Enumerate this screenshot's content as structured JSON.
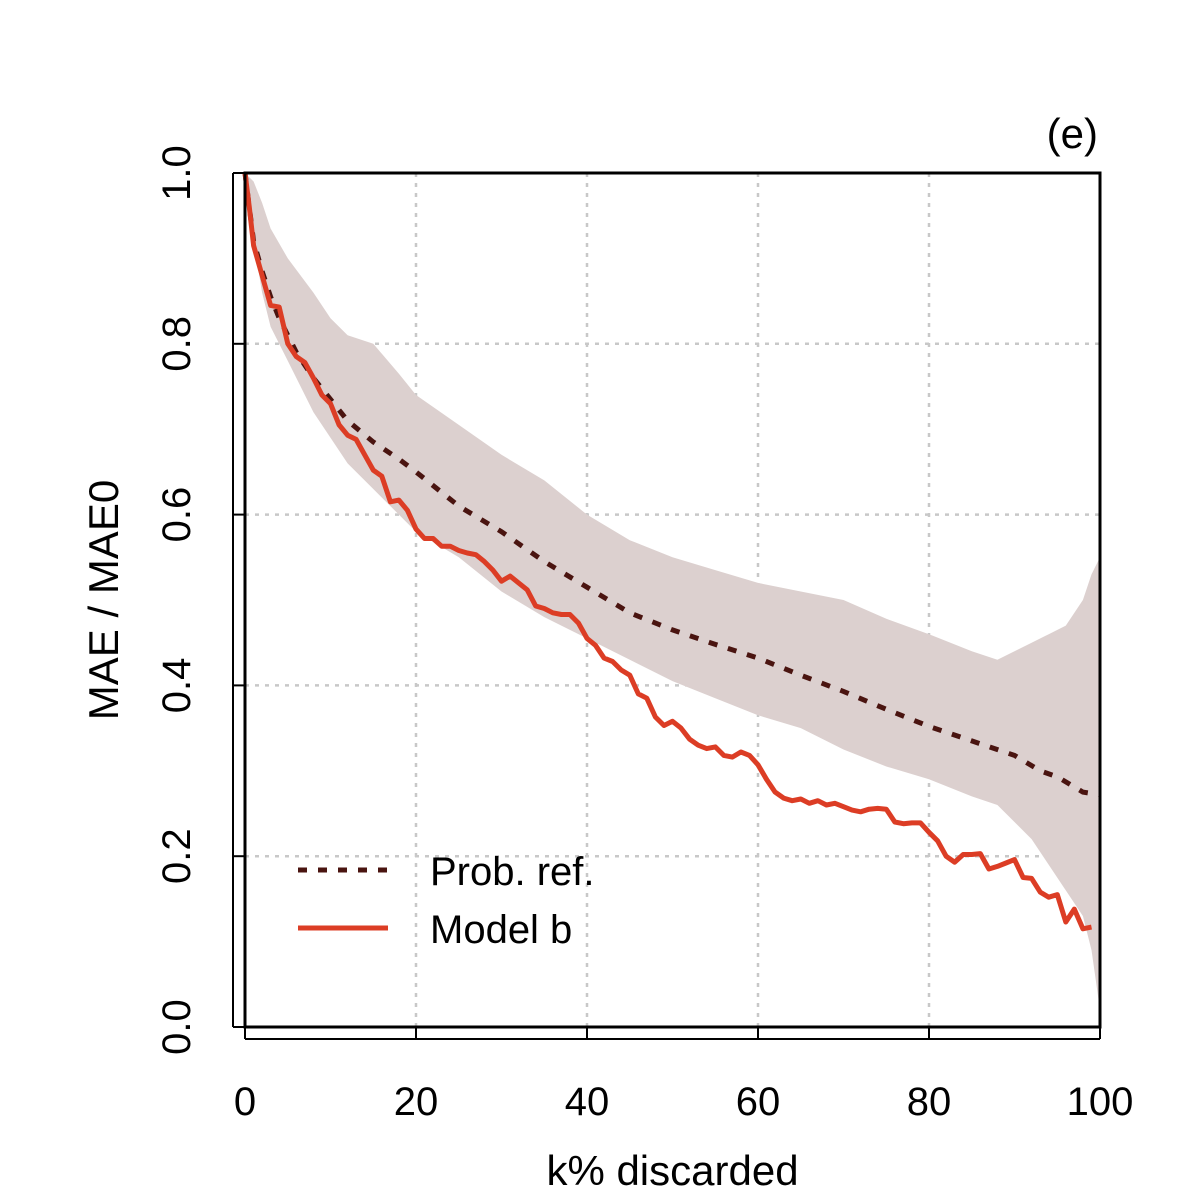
{
  "chart_data": {
    "type": "line",
    "panel_label": "(e)",
    "xlabel": "k% discarded",
    "ylabel": "MAE / MAE0",
    "xlim": [
      0,
      100
    ],
    "ylim": [
      0,
      1
    ],
    "x_ticks": [
      "0",
      "20",
      "40",
      "60",
      "80",
      "100"
    ],
    "y_ticks": [
      "0.0",
      "0.2",
      "0.4",
      "0.6",
      "0.8",
      "1.0"
    ],
    "grid": true,
    "legend_position": "bottom-left",
    "colors": {
      "ribbon": "#dcd0cf",
      "prob_ref": "#4a1410",
      "model_b": "#dc3d25",
      "grid": "#c8c8c8",
      "frame": "#000000"
    },
    "series": [
      {
        "name": "Prob. ref.",
        "style": "dotted",
        "x": [
          0,
          1,
          2,
          3,
          4,
          5,
          6,
          8,
          10,
          12,
          15,
          18,
          20,
          25,
          30,
          35,
          40,
          45,
          50,
          55,
          60,
          65,
          70,
          75,
          80,
          85,
          90,
          93,
          95,
          98,
          100
        ],
        "y": [
          1.0,
          0.92,
          0.885,
          0.855,
          0.83,
          0.81,
          0.79,
          0.76,
          0.735,
          0.71,
          0.685,
          0.665,
          0.65,
          0.61,
          0.58,
          0.545,
          0.515,
          0.485,
          0.465,
          0.448,
          0.432,
          0.412,
          0.393,
          0.372,
          0.352,
          0.335,
          0.318,
          0.3,
          0.293,
          0.275,
          0.272
        ]
      },
      {
        "name": "Model b",
        "style": "solid",
        "x": [
          0,
          0.5,
          1,
          2,
          3,
          4,
          5,
          6,
          7,
          8,
          9,
          10,
          11,
          12,
          13,
          14,
          15,
          16,
          17,
          18,
          19,
          20,
          21,
          22,
          23,
          24,
          25,
          26,
          27,
          28,
          29,
          30,
          31,
          32,
          33,
          34,
          35,
          36,
          37,
          38,
          39,
          40,
          41,
          42,
          43,
          44,
          45,
          46,
          47,
          48,
          49,
          50,
          51,
          52,
          53,
          54,
          55,
          56,
          57,
          58,
          59,
          60,
          61,
          62,
          63,
          64,
          65,
          66,
          67,
          68,
          69,
          70,
          71,
          72,
          73,
          74,
          75,
          76,
          77,
          78,
          79,
          80,
          81,
          82,
          83,
          84,
          85,
          86,
          87,
          88,
          89,
          90,
          91,
          92,
          93,
          94,
          95,
          96,
          97,
          98,
          99
        ],
        "y": [
          1.0,
          0.96,
          0.915,
          0.88,
          0.845,
          0.843,
          0.8,
          0.785,
          0.778,
          0.76,
          0.74,
          0.73,
          0.705,
          0.693,
          0.688,
          0.67,
          0.652,
          0.645,
          0.615,
          0.617,
          0.605,
          0.583,
          0.572,
          0.572,
          0.563,
          0.563,
          0.558,
          0.555,
          0.553,
          0.545,
          0.535,
          0.522,
          0.528,
          0.52,
          0.512,
          0.493,
          0.49,
          0.485,
          0.483,
          0.483,
          0.473,
          0.455,
          0.447,
          0.432,
          0.428,
          0.418,
          0.412,
          0.39,
          0.385,
          0.363,
          0.353,
          0.358,
          0.35,
          0.337,
          0.33,
          0.326,
          0.328,
          0.318,
          0.316,
          0.322,
          0.318,
          0.307,
          0.29,
          0.275,
          0.268,
          0.265,
          0.267,
          0.262,
          0.265,
          0.26,
          0.262,
          0.258,
          0.254,
          0.252,
          0.255,
          0.256,
          0.255,
          0.24,
          0.238,
          0.239,
          0.239,
          0.228,
          0.218,
          0.2,
          0.193,
          0.202,
          0.202,
          0.203,
          0.185,
          0.188,
          0.192,
          0.196,
          0.175,
          0.174,
          0.158,
          0.152,
          0.155,
          0.123,
          0.138,
          0.115,
          0.117
        ]
      }
    ],
    "ribbon": {
      "name": "Prob. ref. range",
      "x": [
        0,
        1,
        2,
        3,
        5,
        8,
        10,
        12,
        15,
        18,
        20,
        25,
        30,
        35,
        40,
        45,
        50,
        55,
        60,
        65,
        70,
        75,
        80,
        85,
        88,
        90,
        92,
        94,
        96,
        98,
        99,
        100
      ],
      "upper": [
        1.0,
        0.99,
        0.965,
        0.935,
        0.9,
        0.86,
        0.83,
        0.81,
        0.8,
        0.765,
        0.74,
        0.705,
        0.67,
        0.64,
        0.6,
        0.57,
        0.55,
        0.535,
        0.52,
        0.51,
        0.5,
        0.478,
        0.46,
        0.44,
        0.43,
        0.44,
        0.45,
        0.46,
        0.47,
        0.5,
        0.53,
        0.55
      ],
      "lower": [
        1.0,
        0.92,
        0.86,
        0.82,
        0.78,
        0.72,
        0.69,
        0.66,
        0.63,
        0.6,
        0.58,
        0.55,
        0.51,
        0.48,
        0.455,
        0.43,
        0.405,
        0.385,
        0.365,
        0.35,
        0.325,
        0.305,
        0.29,
        0.27,
        0.26,
        0.24,
        0.22,
        0.19,
        0.16,
        0.13,
        0.09,
        0.02
      ]
    }
  }
}
